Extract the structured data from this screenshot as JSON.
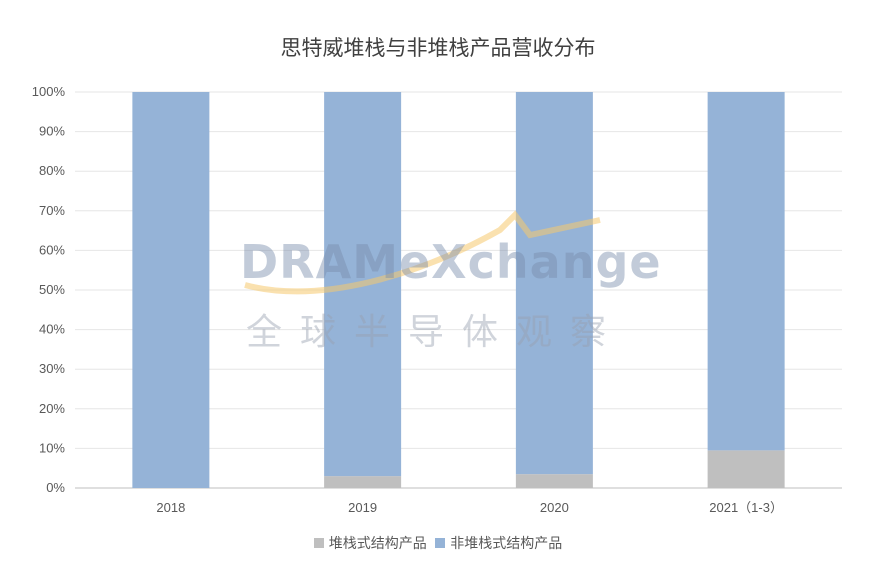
{
  "chart_data": {
    "type": "bar",
    "stacked": true,
    "title": "思特威堆栈与非堆栈产品营收分布",
    "categories": [
      "2018",
      "2019",
      "2020",
      "2021（1-3）"
    ],
    "series": [
      {
        "name": "堆栈式结构产品",
        "values": [
          0,
          3,
          3.5,
          9.5
        ],
        "color": "#bfbfbf"
      },
      {
        "name": "非堆栈式结构产品",
        "values": [
          100,
          97,
          96.5,
          90.5
        ],
        "color": "#95b3d7"
      }
    ],
    "ylim": [
      0,
      100
    ],
    "yticks": [
      "0%",
      "10%",
      "20%",
      "30%",
      "40%",
      "50%",
      "60%",
      "70%",
      "80%",
      "90%",
      "100%"
    ],
    "grid": true,
    "legend": "bottom"
  },
  "watermark": {
    "brand": "DRAMeXchange",
    "subtitle": "全球半导体观察"
  }
}
